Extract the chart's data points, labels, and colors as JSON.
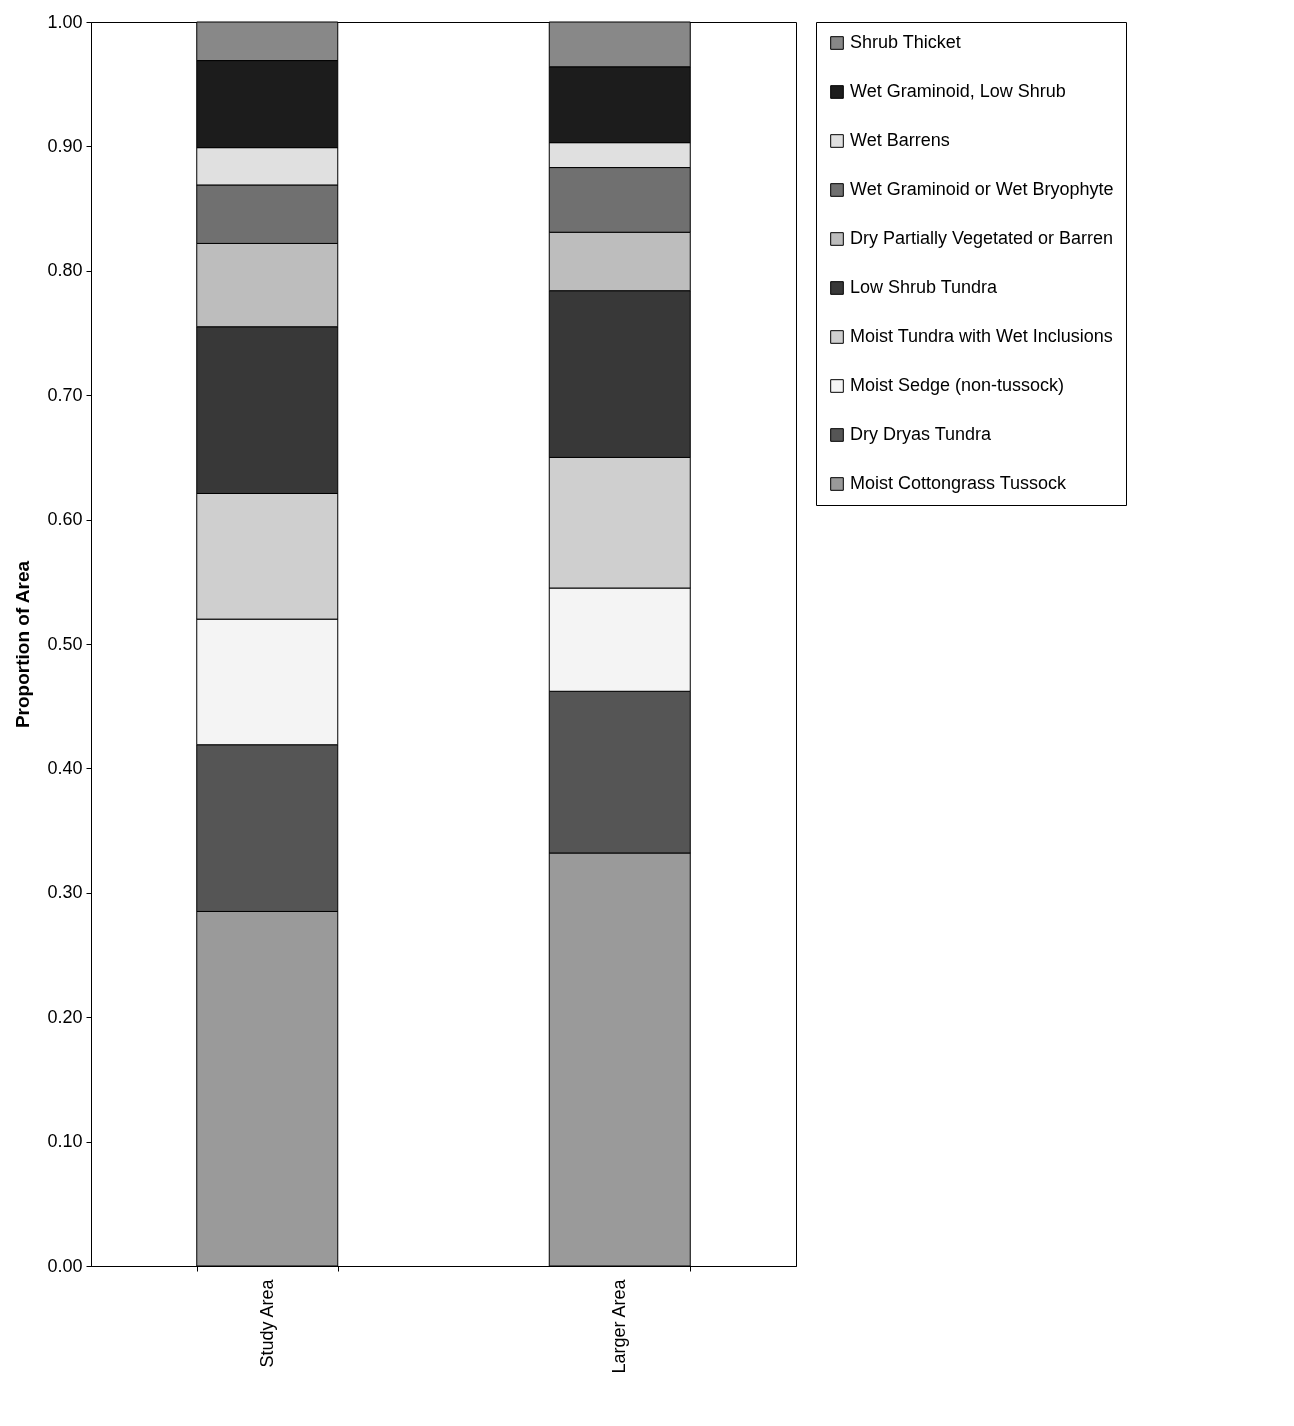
{
  "chart_data": {
    "type": "bar",
    "stacked": true,
    "ylabel": "Proportion of Area",
    "categories": [
      "Study Area",
      "Larger Area"
    ],
    "ylim": [
      0,
      1
    ],
    "yticks": [
      {
        "value": 0,
        "label": "0.00"
      },
      {
        "value": 0.1,
        "label": "0.10"
      },
      {
        "value": 0.2,
        "label": "0.20"
      },
      {
        "value": 0.3,
        "label": "0.30"
      },
      {
        "value": 0.4,
        "label": "0.40"
      },
      {
        "value": 0.5,
        "label": "0.50"
      },
      {
        "value": 0.6,
        "label": "0.60"
      },
      {
        "value": 0.7,
        "label": "0.70"
      },
      {
        "value": 0.8,
        "label": "0.80"
      },
      {
        "value": 0.9,
        "label": "0.90"
      },
      {
        "value": 1,
        "label": "1.00"
      }
    ],
    "grid": false,
    "legend": "right",
    "series": [
      {
        "name": "Moist Cottongrass Tussock",
        "color": "#9a9a9a",
        "values": [
          0.285,
          0.332
        ]
      },
      {
        "name": "Dry Dryas Tundra",
        "color": "#555555",
        "values": [
          0.134,
          0.13
        ]
      },
      {
        "name": "Moist Sedge (non-tussock)",
        "color": "#f4f4f4",
        "values": [
          0.101,
          0.083
        ]
      },
      {
        "name": "Moist Tundra with Wet Inclusions",
        "color": "#cfcfcf",
        "values": [
          0.101,
          0.105
        ]
      },
      {
        "name": "Low Shrub Tundra",
        "color": "#383838",
        "values": [
          0.134,
          0.134
        ]
      },
      {
        "name": "Dry Partially Vegetated or Barren",
        "color": "#bdbdbd",
        "values": [
          0.067,
          0.047
        ]
      },
      {
        "name": "Wet Graminoid or Wet Bryophyte",
        "color": "#707070",
        "values": [
          0.047,
          0.052
        ]
      },
      {
        "name": "Wet Barrens",
        "color": "#e0e0e0",
        "values": [
          0.03,
          0.02
        ]
      },
      {
        "name": "Wet Graminoid, Low Shrub",
        "color": "#1c1c1c",
        "values": [
          0.07,
          0.061
        ]
      },
      {
        "name": "Shrub Thicket",
        "color": "#888888",
        "values": [
          0.031,
          0.036
        ]
      }
    ]
  }
}
